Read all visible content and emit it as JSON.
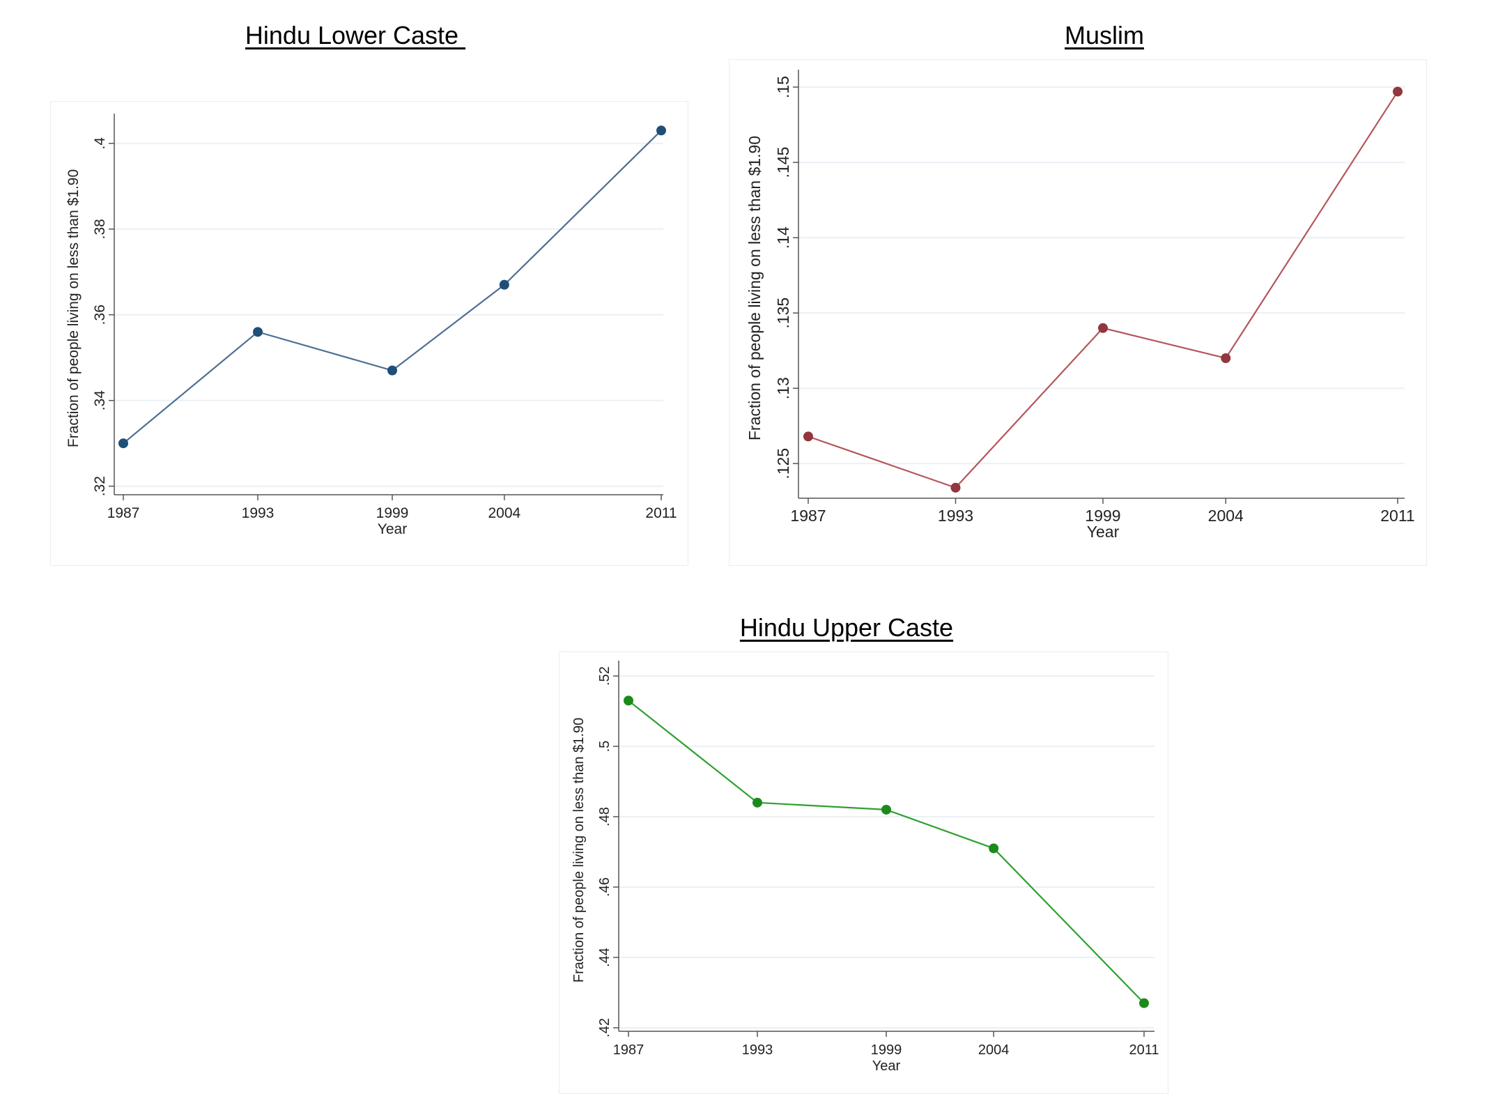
{
  "chart_data": [
    {
      "type": "line",
      "title": "Hindu Lower Caste ",
      "xlabel": "Year",
      "ylabel": "Fraction of people living on less than $1.90",
      "x": [
        1987,
        1993,
        1999,
        2004,
        2011
      ],
      "series": [
        {
          "values": [
            0.33,
            0.356,
            0.347,
            0.367,
            0.403
          ]
        }
      ],
      "xticks": [
        "1987",
        "1993",
        "1999",
        "2004",
        "2011"
      ],
      "yticks": [
        ".32",
        ".34",
        ".36",
        ".38",
        ".4"
      ],
      "ytick_values": [
        0.32,
        0.34,
        0.36,
        0.38,
        0.4
      ],
      "ylim": [
        0.318,
        0.405
      ],
      "grid": true,
      "color": "#1f4e79",
      "line_color": "#4d6f93"
    },
    {
      "type": "line",
      "title": "Muslim",
      "xlabel": "Year",
      "ylabel": "Fraction of people living on less than $1.90",
      "x": [
        1987,
        1993,
        1999,
        2004,
        2011
      ],
      "series": [
        {
          "values": [
            0.1268,
            0.1234,
            0.134,
            0.132,
            0.1497
          ]
        }
      ],
      "xticks": [
        "1987",
        "1993",
        "1999",
        "2004",
        "2011"
      ],
      "yticks": [
        ".125",
        ".13",
        ".135",
        ".14",
        ".145",
        ".15"
      ],
      "ytick_values": [
        0.125,
        0.13,
        0.135,
        0.14,
        0.145,
        0.15
      ],
      "ylim": [
        0.1227,
        0.1506
      ],
      "grid": true,
      "color": "#93363d",
      "line_color": "#b5555b"
    },
    {
      "type": "line",
      "title": "Hindu Upper Caste",
      "xlabel": "Year",
      "ylabel": "Fraction of people living on less than $1.90",
      "x": [
        1987,
        1993,
        1999,
        2004,
        2011
      ],
      "series": [
        {
          "values": [
            0.513,
            0.484,
            0.482,
            0.471,
            0.427
          ]
        }
      ],
      "xticks": [
        "1987",
        "1993",
        "1999",
        "2004",
        "2011"
      ],
      "yticks": [
        ".42",
        ".44",
        ".46",
        ".48",
        ".5",
        ".52"
      ],
      "ytick_values": [
        0.42,
        0.44,
        0.46,
        0.48,
        0.5,
        0.52
      ],
      "ylim": [
        0.419,
        0.522
      ],
      "grid": true,
      "color": "#1b8a1b",
      "line_color": "#2ea02e"
    }
  ]
}
